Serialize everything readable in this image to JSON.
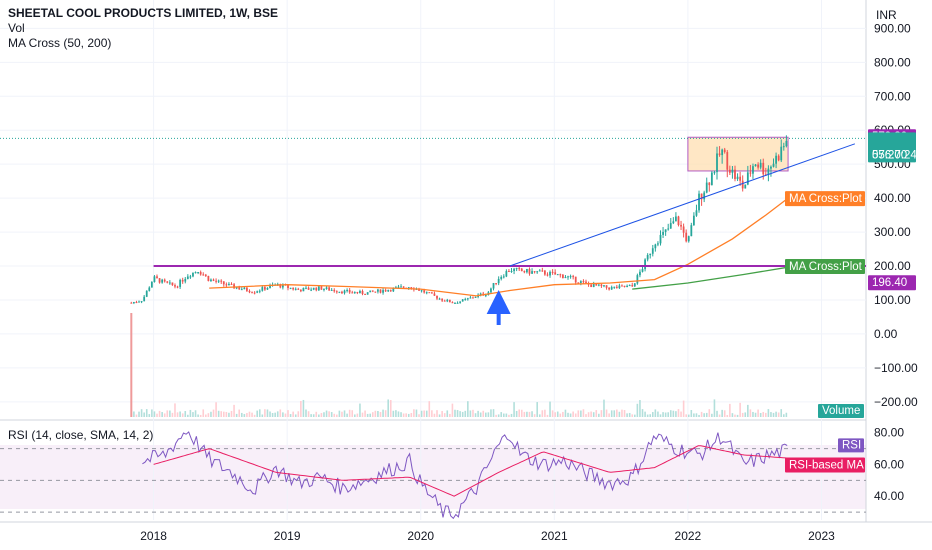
{
  "header": {
    "title": "SHEETAL COOL PRODUCTS LIMITED, 1W, BSE",
    "vol_label": "Vol",
    "ma_label": "MA Cross (50, 200)",
    "rsi_label": "RSI (14, close, SMA, 14, 2)",
    "currency": "INR"
  },
  "chart_data": [
    {
      "type": "candlestick",
      "title": "SHEETAL COOL PRODUCTS LIMITED, 1W, BSE",
      "x_ticks": [
        "2018",
        "2019",
        "2020",
        "2021",
        "2022",
        "2023"
      ],
      "y_ticks": [
        "900.00",
        "800.00",
        "700.00",
        "600.00",
        "500.00",
        "400.00",
        "300.00",
        "200.00",
        "100.00",
        "0.00",
        "−100.00",
        "−200.00"
      ],
      "ylim": [
        -230,
        960
      ],
      "price_path": [
        [
          "2017-11",
          92
        ],
        [
          "2017-12",
          100
        ],
        [
          "2018-01",
          165
        ],
        [
          "2018-02",
          150
        ],
        [
          "2018-03",
          140
        ],
        [
          "2018-04",
          172
        ],
        [
          "2018-05",
          188
        ],
        [
          "2018-06",
          160
        ],
        [
          "2018-08",
          140
        ],
        [
          "2018-10",
          125
        ],
        [
          "2018-12",
          145
        ],
        [
          "2019-02",
          130
        ],
        [
          "2019-04",
          135
        ],
        [
          "2019-06",
          125
        ],
        [
          "2019-08",
          120
        ],
        [
          "2019-10",
          130
        ],
        [
          "2019-12",
          140
        ],
        [
          "2020-01",
          128
        ],
        [
          "2020-03",
          100
        ],
        [
          "2020-04",
          92
        ],
        [
          "2020-05",
          100
        ],
        [
          "2020-06",
          112
        ],
        [
          "2020-07",
          120
        ],
        [
          "2020-08",
          165
        ],
        [
          "2020-09",
          190
        ],
        [
          "2020-10",
          185
        ],
        [
          "2020-12",
          180
        ],
        [
          "2021-02",
          170
        ],
        [
          "2021-04",
          145
        ],
        [
          "2021-06",
          135
        ],
        [
          "2021-08",
          140
        ],
        [
          "2021-09",
          200
        ],
        [
          "2021-10",
          270
        ],
        [
          "2021-11",
          300
        ],
        [
          "2021-12",
          340
        ],
        [
          "2022-01",
          270
        ],
        [
          "2022-02",
          400
        ],
        [
          "2022-03",
          460
        ],
        [
          "2022-04",
          540
        ],
        [
          "2022-05",
          475
        ],
        [
          "2022-06",
          430
        ],
        [
          "2022-07",
          510
        ],
        [
          "2022-08",
          480
        ],
        [
          "2022-09",
          520
        ],
        [
          "2022-10",
          576
        ]
      ],
      "volume_spike": {
        "date": "2017-11",
        "note": "tall early volume bar"
      },
      "series": [
        {
          "name": "MA Cross:Plot",
          "period": 50,
          "color": "#ff7f27",
          "path": [
            [
              "2018-06",
              135
            ],
            [
              "2019-01",
              145
            ],
            [
              "2019-06",
              140
            ],
            [
              "2020-01",
              132
            ],
            [
              "2020-06",
              112
            ],
            [
              "2020-09",
              128
            ],
            [
              "2021-01",
              145
            ],
            [
              "2021-06",
              150
            ],
            [
              "2021-10",
              160
            ],
            [
              "2022-01",
              205
            ],
            [
              "2022-05",
              280
            ],
            [
              "2022-08",
              350
            ],
            [
              "2022-10",
              400
            ]
          ]
        },
        {
          "name": "MA Cross:Plot",
          "period": 200,
          "color": "#43a047",
          "path": [
            [
              "2021-08",
              132
            ],
            [
              "2022-01",
              150
            ],
            [
              "2022-06",
              175
            ],
            [
              "2022-10",
              196.4
            ]
          ]
        }
      ],
      "annotations": {
        "horizontal_resistance": 200,
        "price_line": 576,
        "box": {
          "from": "2022-01",
          "to": "2022-10",
          "low": 480,
          "high": 579.3
        },
        "trend_line": {
          "from": [
            "2020-09",
            200
          ],
          "to": [
            "2023-04",
            560
          ]
        },
        "arrow": {
          "date": "2020-08",
          "direction": "up"
        }
      },
      "labels": {
        "box_high": "579.30",
        "last_price": "576.00",
        "countdown": "05:27:24",
        "ma50_tag": "MA Cross:Plot",
        "ma200_tag": "MA Cross:Plot",
        "ma200_value": "196.40",
        "volume_tag": "Volume"
      },
      "colors": {
        "up": "#26a69a",
        "down": "#ef5350",
        "resistance": "#9c27b0",
        "box_fill": "#ffe0b2",
        "trend": "#1e53e5",
        "arrow": "#2962ff"
      }
    },
    {
      "type": "line",
      "title": "RSI (14, close, SMA, 14, 2)",
      "y_ticks": [
        "80.00",
        "60.00",
        "40.00"
      ],
      "ylim": [
        25,
        88
      ],
      "bands": {
        "upper": 70,
        "middle": 50,
        "lower": 30
      },
      "series": [
        {
          "name": "RSI",
          "color": "#7e57c2",
          "path": [
            [
              "2017-12",
              62
            ],
            [
              "2018-02",
              66
            ],
            [
              "2018-04",
              82
            ],
            [
              "2018-06",
              63
            ],
            [
              "2018-08",
              55
            ],
            [
              "2018-10",
              44
            ],
            [
              "2018-12",
              58
            ],
            [
              "2019-02",
              48
            ],
            [
              "2019-04",
              52
            ],
            [
              "2019-06",
              45
            ],
            [
              "2019-08",
              50
            ],
            [
              "2019-10",
              56
            ],
            [
              "2019-12",
              62
            ],
            [
              "2020-01",
              48
            ],
            [
              "2020-03",
              30
            ],
            [
              "2020-04",
              28
            ],
            [
              "2020-06",
              45
            ],
            [
              "2020-08",
              72
            ],
            [
              "2020-09",
              80
            ],
            [
              "2020-10",
              66
            ],
            [
              "2020-12",
              60
            ],
            [
              "2021-02",
              62
            ],
            [
              "2021-04",
              54
            ],
            [
              "2021-06",
              48
            ],
            [
              "2021-08",
              52
            ],
            [
              "2021-10",
              78
            ],
            [
              "2021-12",
              70
            ],
            [
              "2022-02",
              66
            ],
            [
              "2022-04",
              78
            ],
            [
              "2022-06",
              60
            ],
            [
              "2022-08",
              65
            ],
            [
              "2022-10",
              69
            ]
          ]
        },
        {
          "name": "RSI-based MA",
          "color": "#e91e63",
          "path": [
            [
              "2018-01",
              60
            ],
            [
              "2018-06",
              70
            ],
            [
              "2018-12",
              55
            ],
            [
              "2019-06",
              50
            ],
            [
              "2019-12",
              52
            ],
            [
              "2020-04",
              40
            ],
            [
              "2020-08",
              55
            ],
            [
              "2020-12",
              68
            ],
            [
              "2021-06",
              55
            ],
            [
              "2021-10",
              58
            ],
            [
              "2022-02",
              72
            ],
            [
              "2022-06",
              66
            ],
            [
              "2022-10",
              64
            ]
          ]
        }
      ],
      "labels": {
        "rsi_tag": "RSI",
        "rsi_ma_tag": "RSI-based MA"
      }
    }
  ]
}
